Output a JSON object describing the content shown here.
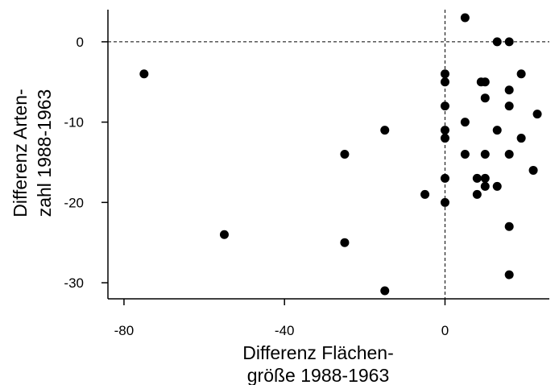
{
  "chart_data": {
    "type": "scatter",
    "xlabel_lines": [
      "Differenz Flächen-",
      "größe 1988-1963"
    ],
    "ylabel_lines": [
      "Differenz Arten-",
      "zahl 1988-1963"
    ],
    "xlim": [
      -84,
      26
    ],
    "ylim": [
      -32,
      4
    ],
    "x_ticks": [
      -80,
      -40,
      0
    ],
    "y_ticks": [
      0,
      -10,
      -20,
      -30
    ],
    "reference_lines": {
      "x": 0,
      "y": 0,
      "style": "dashed"
    },
    "grid": false,
    "points": [
      {
        "x": -75,
        "y": -4
      },
      {
        "x": -55,
        "y": -24
      },
      {
        "x": -25,
        "y": -14
      },
      {
        "x": -25,
        "y": -25
      },
      {
        "x": -15,
        "y": -11
      },
      {
        "x": -15,
        "y": -31
      },
      {
        "x": -5,
        "y": -19
      },
      {
        "x": 0,
        "y": -4
      },
      {
        "x": 0,
        "y": -5
      },
      {
        "x": 0,
        "y": -8
      },
      {
        "x": 0,
        "y": -11
      },
      {
        "x": 0,
        "y": -12
      },
      {
        "x": 0,
        "y": -17
      },
      {
        "x": 0,
        "y": -20
      },
      {
        "x": 5,
        "y": 3
      },
      {
        "x": 5,
        "y": -10
      },
      {
        "x": 5,
        "y": -14
      },
      {
        "x": 8,
        "y": -17
      },
      {
        "x": 8,
        "y": -19
      },
      {
        "x": 9,
        "y": -5
      },
      {
        "x": 10,
        "y": -5
      },
      {
        "x": 10,
        "y": -7
      },
      {
        "x": 10,
        "y": -14
      },
      {
        "x": 10,
        "y": -17
      },
      {
        "x": 10,
        "y": -18
      },
      {
        "x": 13,
        "y": 0
      },
      {
        "x": 13,
        "y": -11
      },
      {
        "x": 13,
        "y": -18
      },
      {
        "x": 16,
        "y": 0
      },
      {
        "x": 16,
        "y": -6
      },
      {
        "x": 16,
        "y": -8
      },
      {
        "x": 16,
        "y": -14
      },
      {
        "x": 16,
        "y": -23
      },
      {
        "x": 16,
        "y": -29
      },
      {
        "x": 19,
        "y": -4
      },
      {
        "x": 19,
        "y": -12
      },
      {
        "x": 22,
        "y": -16
      },
      {
        "x": 23,
        "y": -9
      }
    ]
  }
}
